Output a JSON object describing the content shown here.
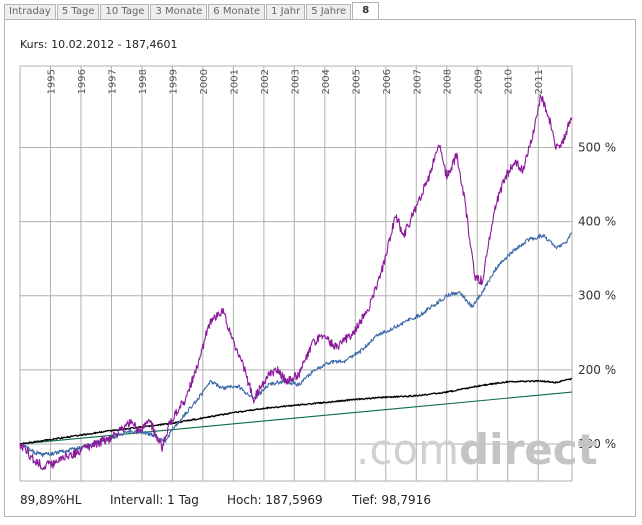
{
  "tabs": [
    {
      "label": "Intraday"
    },
    {
      "label": "5 Tage"
    },
    {
      "label": "10 Tage"
    },
    {
      "label": "3 Monate"
    },
    {
      "label": "6 Monate"
    },
    {
      "label": "1 Jahr"
    },
    {
      "label": "5 Jahre"
    },
    {
      "label": "8",
      "active": true
    }
  ],
  "header": {
    "kurs": "Kurs: 10.02.2012 - 187,4601"
  },
  "footer": {
    "hl": "89,89%HL",
    "intervall": "Intervall: 1 Tag",
    "hoch": "Hoch: 187,5969",
    "tief": "Tief: 98,7916"
  },
  "watermark": {
    "prefix": ".com",
    "suffix": "direct"
  },
  "chart_data": {
    "type": "line",
    "x_axis": {
      "type": "date",
      "range": [
        "1994-01-01",
        "2012-02-10"
      ],
      "tick_labels": [
        "1995",
        "1996",
        "1997",
        "1998",
        "1999",
        "2000",
        "2001",
        "2002",
        "2003",
        "2004",
        "2005",
        "2006",
        "2007",
        "2008",
        "2009",
        "2010",
        "2011"
      ]
    },
    "y_axis": {
      "unit": "%",
      "range": [
        50,
        610
      ],
      "ticks": [
        {
          "value": 100,
          "label": "100 %"
        },
        {
          "value": 200,
          "label": "200 %"
        },
        {
          "value": 300,
          "label": "300 %"
        },
        {
          "value": 400,
          "label": "400 %"
        },
        {
          "value": 500,
          "label": "500 %"
        }
      ]
    },
    "grid": true,
    "colors": {
      "purple": "#8b1a9b",
      "blue": "#3a6aa8",
      "black": "#000000",
      "green": "#0c6b4a",
      "grid": "#b0b0b0"
    },
    "series": [
      {
        "color": "purple",
        "points": [
          [
            "1994-01-01",
            100
          ],
          [
            "1994-06-01",
            80
          ],
          [
            "1994-10-01",
            70
          ],
          [
            "1995-02-01",
            73
          ],
          [
            "1995-06-01",
            82
          ],
          [
            "1996-01-01",
            90
          ],
          [
            "1996-06-01",
            100
          ],
          [
            "1997-01-01",
            108
          ],
          [
            "1997-06-01",
            122
          ],
          [
            "1997-09-01",
            130
          ],
          [
            "1997-12-01",
            115
          ],
          [
            "1998-04-01",
            132
          ],
          [
            "1998-09-01",
            95
          ],
          [
            "1998-12-01",
            128
          ],
          [
            "1999-06-01",
            160
          ],
          [
            "1999-12-01",
            215
          ],
          [
            "2000-03-01",
            260
          ],
          [
            "2000-06-01",
            270
          ],
          [
            "2000-09-01",
            280
          ],
          [
            "2000-12-01",
            245
          ],
          [
            "2001-04-01",
            215
          ],
          [
            "2001-09-01",
            160
          ],
          [
            "2002-02-01",
            190
          ],
          [
            "2002-06-01",
            200
          ],
          [
            "2002-10-01",
            185
          ],
          [
            "2003-03-01",
            195
          ],
          [
            "2003-08-01",
            235
          ],
          [
            "2003-12-01",
            245
          ],
          [
            "2004-06-01",
            230
          ],
          [
            "2004-12-01",
            250
          ],
          [
            "2005-06-01",
            280
          ],
          [
            "2005-12-01",
            340
          ],
          [
            "2006-05-01",
            410
          ],
          [
            "2006-08-01",
            380
          ],
          [
            "2007-01-01",
            420
          ],
          [
            "2007-06-01",
            460
          ],
          [
            "2007-10-01",
            505
          ],
          [
            "2008-01-01",
            460
          ],
          [
            "2008-05-01",
            490
          ],
          [
            "2008-08-01",
            430
          ],
          [
            "2008-12-01",
            325
          ],
          [
            "2009-03-01",
            320
          ],
          [
            "2009-08-01",
            420
          ],
          [
            "2009-12-01",
            460
          ],
          [
            "2010-04-01",
            480
          ],
          [
            "2010-07-01",
            470
          ],
          [
            "2010-11-01",
            520
          ],
          [
            "2011-02-01",
            570
          ],
          [
            "2011-05-01",
            545
          ],
          [
            "2011-08-01",
            500
          ],
          [
            "2011-11-01",
            510
          ],
          [
            "2012-01-01",
            530
          ],
          [
            "2012-02-10",
            540
          ]
        ]
      },
      {
        "color": "blue",
        "points": [
          [
            "1994-01-01",
            100
          ],
          [
            "1994-06-01",
            90
          ],
          [
            "1994-10-01",
            85
          ],
          [
            "1995-06-01",
            90
          ],
          [
            "1996-01-01",
            95
          ],
          [
            "1996-06-01",
            100
          ],
          [
            "1997-01-01",
            108
          ],
          [
            "1997-09-01",
            118
          ],
          [
            "1998-06-01",
            112
          ],
          [
            "1998-10-01",
            102
          ],
          [
            "1999-01-01",
            120
          ],
          [
            "1999-06-01",
            140
          ],
          [
            "1999-12-01",
            165
          ],
          [
            "2000-04-01",
            185
          ],
          [
            "2000-09-01",
            175
          ],
          [
            "2001-03-01",
            178
          ],
          [
            "2001-09-01",
            160
          ],
          [
            "2002-03-01",
            180
          ],
          [
            "2002-09-01",
            185
          ],
          [
            "2003-03-01",
            180
          ],
          [
            "2003-09-01",
            200
          ],
          [
            "2004-03-01",
            210
          ],
          [
            "2004-09-01",
            212
          ],
          [
            "2005-03-01",
            225
          ],
          [
            "2005-09-01",
            245
          ],
          [
            "2006-03-01",
            255
          ],
          [
            "2006-09-01",
            265
          ],
          [
            "2007-03-01",
            275
          ],
          [
            "2007-09-01",
            290
          ],
          [
            "2008-01-01",
            300
          ],
          [
            "2008-06-01",
            305
          ],
          [
            "2008-11-01",
            285
          ],
          [
            "2009-03-01",
            305
          ],
          [
            "2009-09-01",
            340
          ],
          [
            "2010-03-01",
            360
          ],
          [
            "2010-09-01",
            375
          ],
          [
            "2011-03-01",
            382
          ],
          [
            "2011-08-01",
            365
          ],
          [
            "2011-12-01",
            372
          ],
          [
            "2012-02-10",
            385
          ]
        ]
      },
      {
        "color": "black",
        "points": [
          [
            "1994-01-01",
            100
          ],
          [
            "1995-01-01",
            106
          ],
          [
            "1996-01-01",
            112
          ],
          [
            "1997-01-01",
            118
          ],
          [
            "1998-01-01",
            123
          ],
          [
            "1999-01-01",
            128
          ],
          [
            "2000-01-01",
            135
          ],
          [
            "2001-01-01",
            142
          ],
          [
            "2002-01-01",
            148
          ],
          [
            "2003-01-01",
            152
          ],
          [
            "2004-01-01",
            156
          ],
          [
            "2005-01-01",
            160
          ],
          [
            "2006-01-01",
            163
          ],
          [
            "2007-01-01",
            165
          ],
          [
            "2008-01-01",
            170
          ],
          [
            "2009-01-01",
            178
          ],
          [
            "2010-01-01",
            184
          ],
          [
            "2011-01-01",
            185
          ],
          [
            "2011-08-01",
            183
          ],
          [
            "2012-02-10",
            188
          ]
        ]
      },
      {
        "color": "green",
        "points": [
          [
            "1994-01-01",
            100
          ],
          [
            "2012-02-10",
            170
          ]
        ]
      }
    ]
  }
}
